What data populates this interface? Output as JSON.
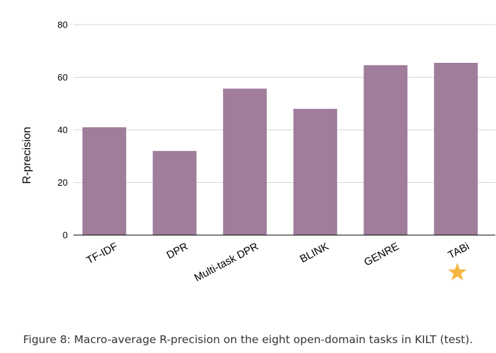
{
  "chart_data": {
    "type": "bar",
    "categories": [
      "TF-IDF",
      "DPR",
      "Multi-task DPR",
      "BLINK",
      "GENRE",
      "TABi"
    ],
    "values": [
      41,
      32,
      55.7,
      48,
      64.6,
      65.5
    ],
    "title": "",
    "xlabel": "",
    "ylabel": "R-precision",
    "ylim": [
      0,
      80
    ],
    "yticks": [
      0,
      20,
      40,
      60,
      80
    ],
    "grid": true,
    "bar_color": "#a07d9b",
    "highlight": {
      "category": "TABi",
      "marker": "star-icon",
      "color": "#f5b642"
    }
  },
  "caption": "Figure 8: Macro-average R-precision on the eight open-domain tasks in KILT (test)."
}
